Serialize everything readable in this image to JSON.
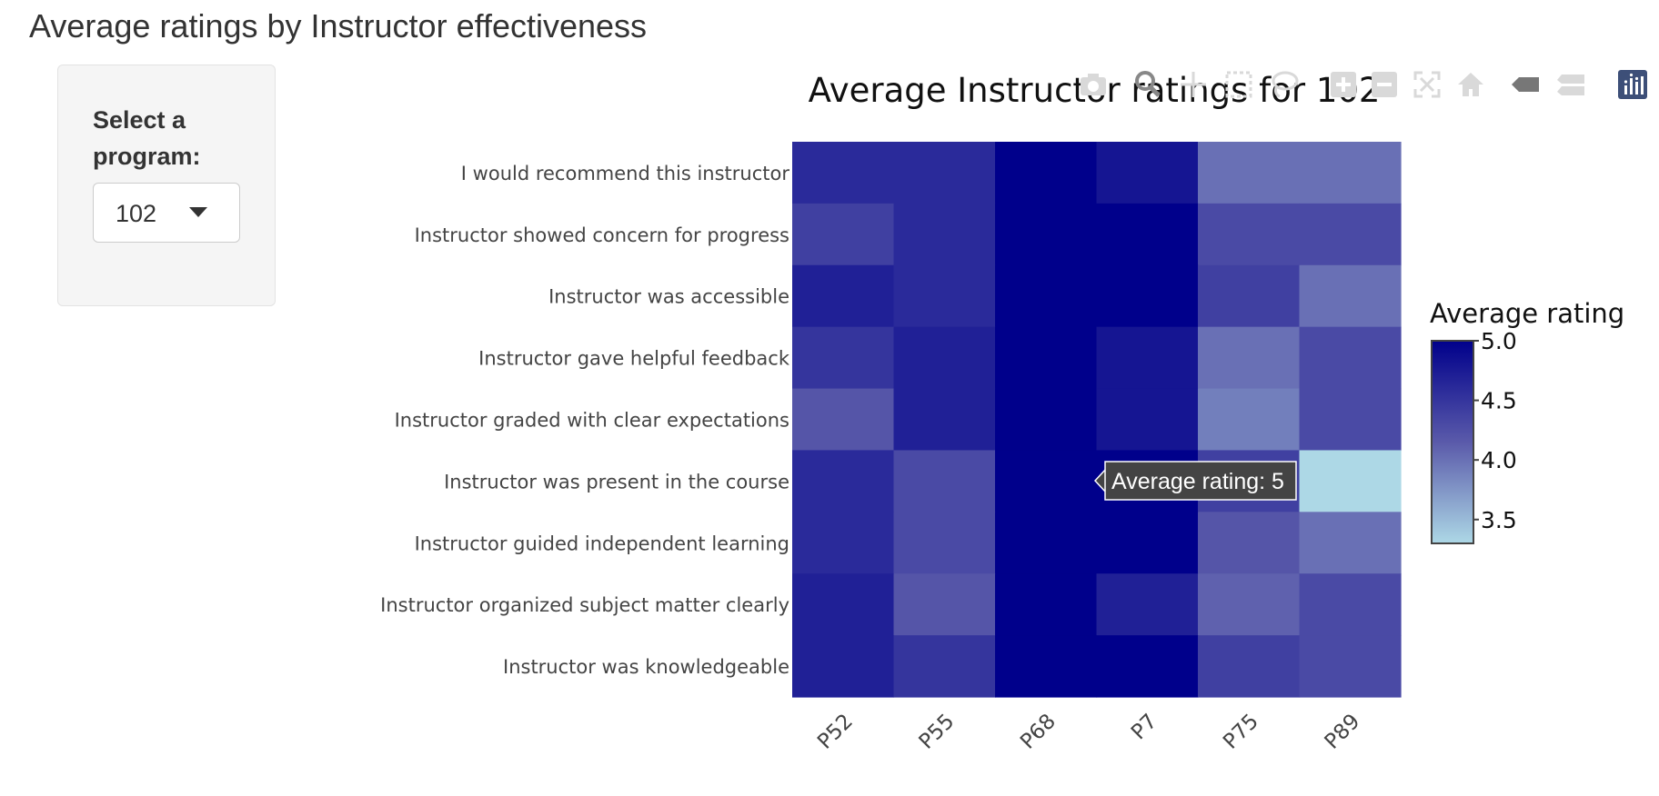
{
  "page": {
    "title": "Average ratings by Instructor effectiveness",
    "sidebar": {
      "label": "Select a program:",
      "selected_program": "102"
    }
  },
  "modebar": {
    "icons": [
      "camera-icon",
      "zoom-icon",
      "pan-icon",
      "box-select-icon",
      "lasso-select-icon",
      "zoom-in-icon",
      "zoom-out-icon",
      "autoscale-icon",
      "reset-axes-icon",
      "hover-closest-icon",
      "hover-compare-icon",
      "plotly-logo-icon"
    ]
  },
  "chart_data": {
    "type": "heatmap",
    "title": "Average Instructor ratings for 102",
    "x": [
      "P52",
      "P55",
      "P68",
      "P7",
      "P75",
      "P89"
    ],
    "y": [
      "I would recommend this instructor",
      "Instructor showed concern for progress",
      "Instructor was accessible",
      "Instructor gave helpful feedback",
      "Instructor graded with clear expectations",
      "Instructor was present in the course",
      "Instructor guided independent learning",
      "Instructor organized subject matter clearly",
      "Instructor was knowledgeable"
    ],
    "z": [
      [
        4.6,
        4.6,
        5.0,
        4.8,
        4.0,
        4.0
      ],
      [
        4.4,
        4.6,
        5.0,
        5.0,
        4.3,
        4.3
      ],
      [
        4.7,
        4.6,
        5.0,
        5.0,
        4.4,
        4.0
      ],
      [
        4.5,
        4.7,
        5.0,
        4.8,
        4.0,
        4.3
      ],
      [
        4.2,
        4.7,
        5.0,
        4.8,
        3.9,
        4.3
      ],
      [
        4.6,
        4.3,
        5.0,
        5.0,
        4.4,
        3.3
      ],
      [
        4.6,
        4.3,
        5.0,
        5.0,
        4.2,
        4.0
      ],
      [
        4.7,
        4.2,
        5.0,
        4.7,
        4.1,
        4.3
      ],
      [
        4.7,
        4.5,
        5.0,
        5.0,
        4.4,
        4.3
      ]
    ],
    "zlim": [
      3.3,
      5.0
    ],
    "colorscale": {
      "low": "#add8e6",
      "mid": "#5a5aaa",
      "high": "#00008b"
    },
    "colorbar": {
      "title": "Average rating",
      "ticks": [
        5.0,
        4.5,
        4.0,
        3.5
      ],
      "tick_labels": [
        "5.0",
        "4.5",
        "4.0",
        "3.5"
      ]
    },
    "tooltip": {
      "text": "Average rating: 5",
      "x": "P7",
      "y": "Instructor was present in the course"
    }
  }
}
